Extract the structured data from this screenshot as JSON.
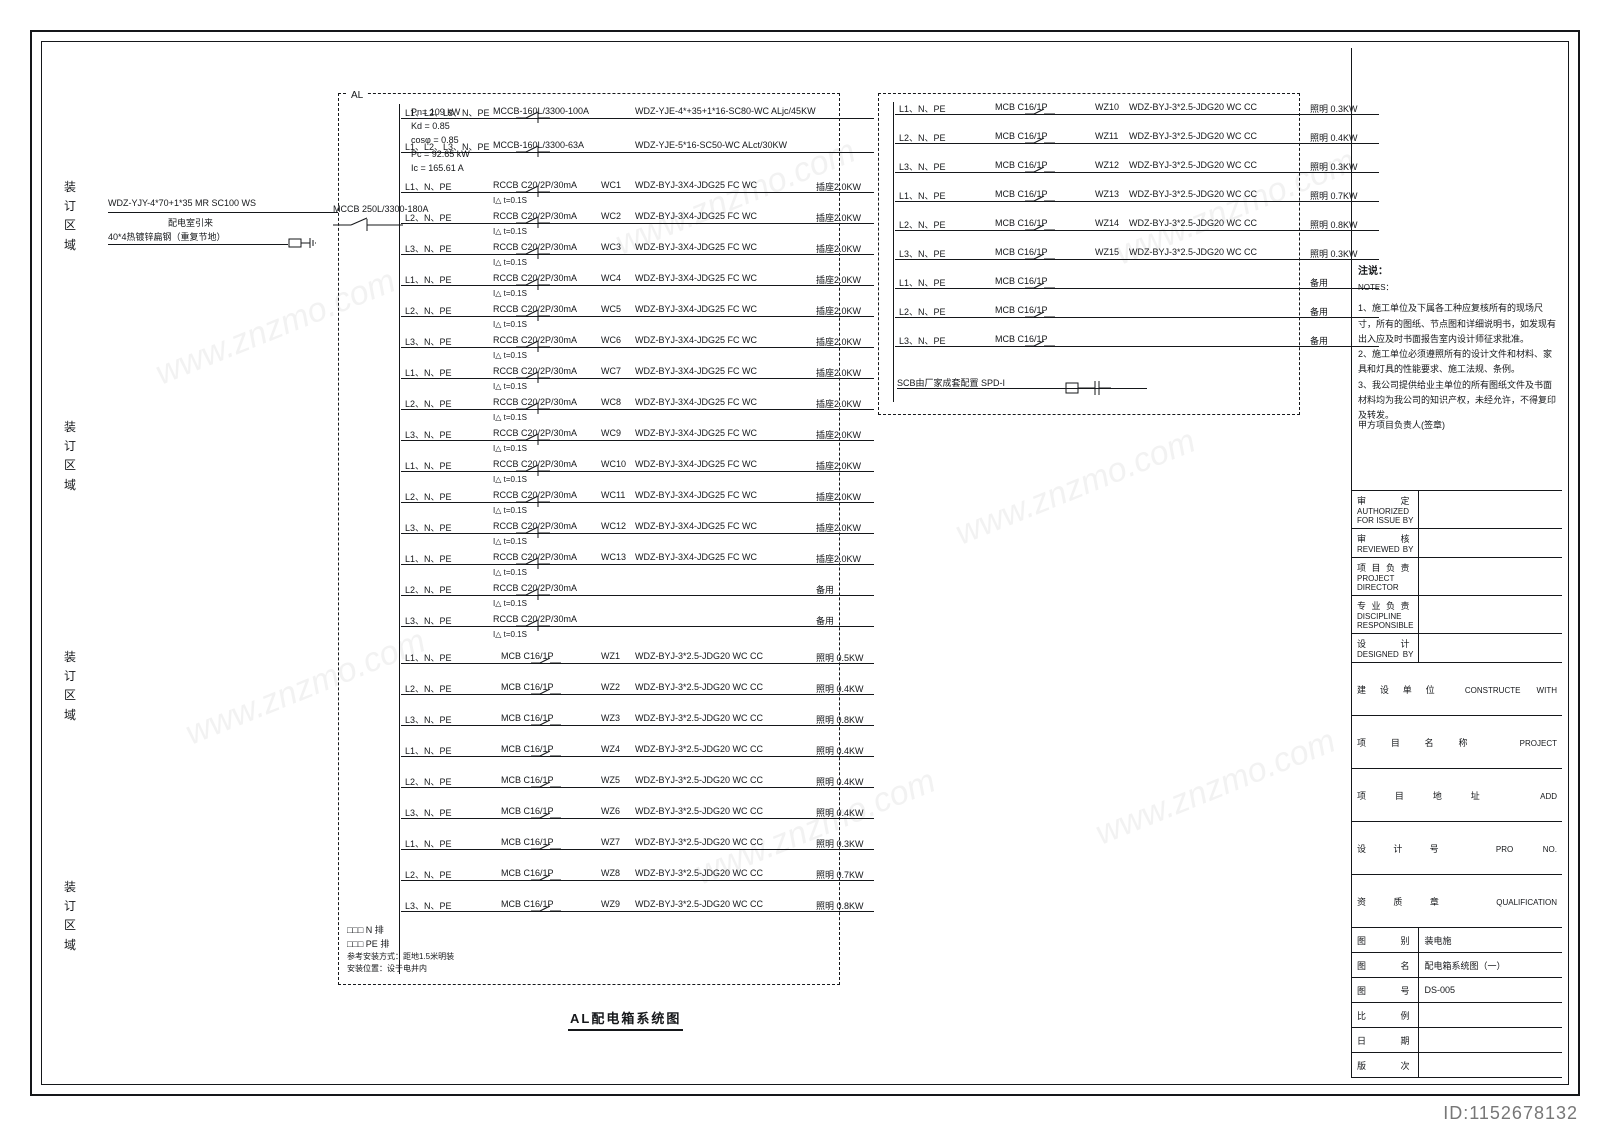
{
  "caption": "AL配电箱系统图",
  "id_tag": "ID:1152678132",
  "binding_label": "装订区域",
  "params": {
    "panel_id": "AL",
    "pn": "Pn= 109 kW",
    "kd": "Kd = 0.85",
    "cos": "cosφ = 0.85",
    "pc": "Pc = 92.65 kW",
    "ic": "Ic = 165.61 A"
  },
  "incoming": {
    "cable": "WDZ-YJY-4*70+1*35 MR SC100 WS",
    "source": "配电室引来",
    "gnd": "40*4热镀锌扁钢（重复节地）",
    "main_breaker": "MCCB 250L/3300-180A"
  },
  "feeders": [
    {
      "phase": "L1、L2、L3、N、PE",
      "breaker": "MCCB-160L/3300-100A",
      "cid": "",
      "cable": "WDZ-YJE-4*+35+1*16-SC80-WC  ALjc/45KW"
    },
    {
      "phase": "L1、L2、L3、N、PE",
      "breaker": "MCCB-160L/3300-63A",
      "cid": "",
      "cable": "WDZ-YJE-5*16-SC50-WC        ALct/30KW"
    }
  ],
  "rccb": {
    "breaker": "RCCB C20/2P/30mA",
    "sub": "I△  t=0.1S",
    "cable": "WDZ-BYJ-3X4-JDG25 FC WC",
    "load": "插座2.0KW",
    "phases": [
      "L1、N、PE",
      "L2、N、PE",
      "L3、N、PE"
    ]
  },
  "rccb_rows": [
    {
      "ph": 0,
      "cid": "WC1"
    },
    {
      "ph": 1,
      "cid": "WC2"
    },
    {
      "ph": 2,
      "cid": "WC3"
    },
    {
      "ph": 0,
      "cid": "WC4"
    },
    {
      "ph": 1,
      "cid": "WC5"
    },
    {
      "ph": 2,
      "cid": "WC6"
    },
    {
      "ph": 0,
      "cid": "WC7"
    },
    {
      "ph": 1,
      "cid": "WC8"
    },
    {
      "ph": 2,
      "cid": "WC9"
    },
    {
      "ph": 0,
      "cid": "WC10"
    },
    {
      "ph": 1,
      "cid": "WC11"
    },
    {
      "ph": 2,
      "cid": "WC12"
    },
    {
      "ph": 0,
      "cid": "WC13"
    },
    {
      "ph": 1,
      "cid": "",
      "spare": true
    },
    {
      "ph": 2,
      "cid": "",
      "spare": true
    }
  ],
  "mcb": {
    "breaker": "MCB C16/1P",
    "cable": "WDZ-BYJ-3*2.5-JDG20 WC CC",
    "loadprefix": "照明 ",
    "phases": [
      "L1、N、PE",
      "L2、N、PE",
      "L3、N、PE"
    ]
  },
  "mcb_left": [
    {
      "ph": 0,
      "cid": "WZ1",
      "kw": "0.5KW"
    },
    {
      "ph": 1,
      "cid": "WZ2",
      "kw": "0.4KW"
    },
    {
      "ph": 2,
      "cid": "WZ3",
      "kw": "0.8KW"
    },
    {
      "ph": 0,
      "cid": "WZ4",
      "kw": "0.4KW"
    },
    {
      "ph": 1,
      "cid": "WZ5",
      "kw": "0.4KW"
    },
    {
      "ph": 2,
      "cid": "WZ6",
      "kw": "0.4KW"
    },
    {
      "ph": 0,
      "cid": "WZ7",
      "kw": "0.3KW"
    },
    {
      "ph": 1,
      "cid": "WZ8",
      "kw": "0.7KW"
    },
    {
      "ph": 2,
      "cid": "WZ9",
      "kw": "0.8KW"
    }
  ],
  "mcb_right": [
    {
      "ph": 0,
      "cid": "WZ10",
      "kw": "0.3KW"
    },
    {
      "ph": 1,
      "cid": "WZ11",
      "kw": "0.4KW"
    },
    {
      "ph": 2,
      "cid": "WZ12",
      "kw": "0.3KW"
    },
    {
      "ph": 0,
      "cid": "WZ13",
      "kw": "0.7KW"
    },
    {
      "ph": 1,
      "cid": "WZ14",
      "kw": "0.8KW"
    },
    {
      "ph": 2,
      "cid": "WZ15",
      "kw": "0.3KW"
    },
    {
      "ph": 0,
      "spare": true
    },
    {
      "ph": 1,
      "spare": true
    },
    {
      "ph": 2,
      "spare": true
    }
  ],
  "spd": "SCB由厂家成套配置   SPD-I",
  "spare_label": "备用",
  "npe": {
    "n": "□□□ N 排",
    "pe": "□□□ PE 排",
    "note": "参考安装方式：距地1.5米明装\n安装位置：设于电井内"
  },
  "titleblock": {
    "notes_head": "注说：",
    "notes_head_en": "NOTES：",
    "notes": "1、施工单位及下属各工种应复核所有的现场尺寸，所有的图纸、节点图和详细说明书，如发现有出入应及时书面报告室内设计师征求批准。\n2、施工单位必须遵照所有的设计文件和材料、家具和灯具的性能要求、施工法规、条例。\n3、我公司提供给业主单位的所有图纸文件及书面材料均为我公司的知识产权，未经允许，不得复印及转发。",
    "stamp": "甲方项目负责人(签章)",
    "rows": [
      {
        "k": "审 定",
        "en": "AUTHORIZED FOR ISSUE BY"
      },
      {
        "k": "审 核",
        "en": "REVIEWED BY"
      },
      {
        "k": "项目负责",
        "en": "PROJECT DIRECTOR"
      },
      {
        "k": "专业负责",
        "en": "DISCIPLINE RESPONSIBLE"
      },
      {
        "k": "设 计",
        "en": "DESIGNED BY"
      }
    ],
    "fields": [
      {
        "k": "建设单位",
        "en": "CONSTRUCTE WITH"
      },
      {
        "k": "项目名称",
        "en": "PROJECT"
      },
      {
        "k": "项目地址",
        "en": "ADD"
      },
      {
        "k": "设计号",
        "en": "PRO NO."
      },
      {
        "k": "资质章",
        "en": "QUALIFICATION"
      }
    ],
    "bottom": [
      {
        "k": "图 别",
        "v": "装电施"
      },
      {
        "k": "图 名",
        "v": "配电箱系统图（一）"
      },
      {
        "k": "图 号",
        "v": "DS-005"
      },
      {
        "k": "比 例",
        "v": ""
      },
      {
        "k": "日 期",
        "v": ""
      },
      {
        "k": "版 次",
        "v": ""
      }
    ]
  },
  "colors": {
    "ink": "#15171a",
    "wm": "#d8d8d8"
  }
}
